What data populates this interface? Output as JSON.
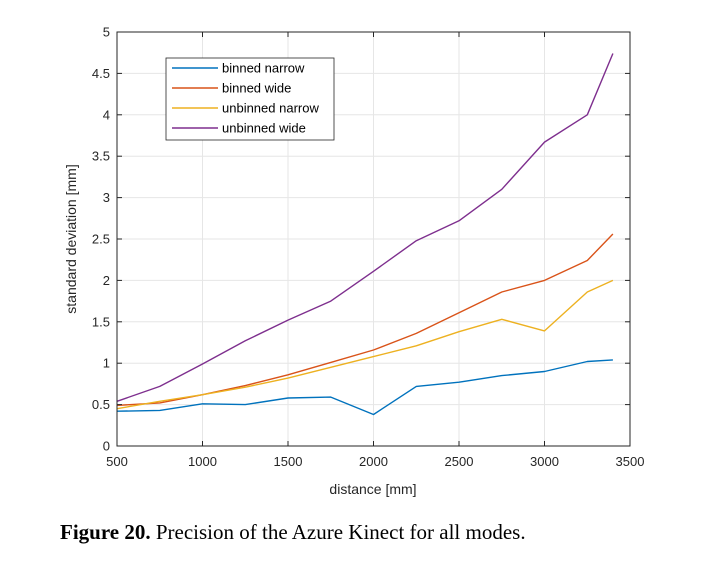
{
  "chart_data": {
    "type": "line",
    "title": "",
    "xlabel": "distance [mm]",
    "ylabel": "standard deviation [mm]",
    "xlim": [
      500,
      3500
    ],
    "ylim": [
      0,
      5
    ],
    "xticks": [
      500,
      1000,
      1500,
      2000,
      2500,
      3000,
      3500
    ],
    "yticks": [
      0,
      0.5,
      1,
      1.5,
      2,
      2.5,
      3,
      3.5,
      4,
      4.5,
      5
    ],
    "xtick_labels": [
      "500",
      "1000",
      "1500",
      "2000",
      "2500",
      "3000",
      "3500"
    ],
    "ytick_labels": [
      "0",
      "0.5",
      "1",
      "1.5",
      "2",
      "2.5",
      "3",
      "3.5",
      "4",
      "4.5",
      "5"
    ],
    "grid": true,
    "legend_position": "top-left",
    "x": [
      500,
      750,
      1000,
      1250,
      1500,
      1750,
      2000,
      2250,
      2500,
      2750,
      3000,
      3250,
      3400
    ],
    "series": [
      {
        "name": "binned narrow",
        "color": "#0072BD",
        "values": [
          0.42,
          0.43,
          0.51,
          0.5,
          0.58,
          0.59,
          0.38,
          0.72,
          0.77,
          0.85,
          0.9,
          1.02,
          1.04
        ]
      },
      {
        "name": "binned wide",
        "color": "#D95319",
        "values": [
          0.49,
          0.52,
          0.62,
          0.73,
          0.86,
          1.01,
          1.16,
          1.36,
          1.61,
          1.86,
          2.0,
          2.24,
          2.56
        ]
      },
      {
        "name": "unbinned narrow",
        "color": "#EDB120",
        "values": [
          0.45,
          0.54,
          0.62,
          0.71,
          0.82,
          0.95,
          1.08,
          1.21,
          1.38,
          1.53,
          1.39,
          1.86,
          2.0
        ]
      },
      {
        "name": "unbinned wide",
        "color": "#7E2F8E",
        "values": [
          0.54,
          0.72,
          0.99,
          1.27,
          1.52,
          1.75,
          2.11,
          2.48,
          2.72,
          3.1,
          3.67,
          4.0,
          4.74
        ]
      }
    ]
  },
  "caption": {
    "label": "Figure 20.",
    "text": " Precision of the Azure Kinect for all modes."
  }
}
